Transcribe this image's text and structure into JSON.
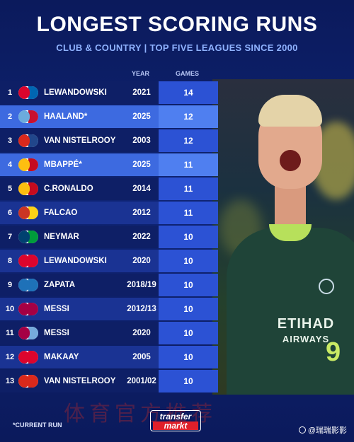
{
  "header": {
    "title": "LONGEST SCORING RUNS",
    "subtitle": "CLUB & COUNTRY | TOP FIVE LEAGUES SINCE 2000"
  },
  "columns": {
    "year": "YEAR",
    "games": "GAMES"
  },
  "colors": {
    "background": "#0d1a55",
    "row_dark": "#0e1f66",
    "row_light": "#1a3393",
    "row_highlight": "#3d6ae0",
    "games_column": "#2c52d4",
    "subtitle": "#8fb2ff"
  },
  "rows": [
    {
      "rank": "1",
      "name": "LEWANDOWSKI",
      "year": "2021",
      "games": "14",
      "crest": "bayern-crest-icon",
      "crest_colors": [
        "#dc052d",
        "#0066b2"
      ]
    },
    {
      "rank": "2",
      "name": "HAALAND*",
      "year": "2025",
      "games": "12",
      "crest": "man-city-crest-icon",
      "crest_colors": [
        "#6cabdd",
        "#c8102e"
      ]
    },
    {
      "rank": "3",
      "name": "VAN NISTELROOY",
      "year": "2003",
      "games": "12",
      "crest": "man-united-crest-icon",
      "crest_colors": [
        "#da291c",
        "#21468b"
      ]
    },
    {
      "rank": "4",
      "name": "MBAPPÉ*",
      "year": "2025",
      "games": "11",
      "crest": "real-madrid-crest-icon",
      "crest_colors": [
        "#febe10",
        "#c60b1e"
      ]
    },
    {
      "rank": "5",
      "name": "C.RONALDO",
      "year": "2014",
      "games": "11",
      "crest": "real-madrid-crest-icon",
      "crest_colors": [
        "#febe10",
        "#c60b1e"
      ]
    },
    {
      "rank": "6",
      "name": "FALCAO",
      "year": "2012",
      "games": "11",
      "crest": "atletico-crest-icon",
      "crest_colors": [
        "#cb3524",
        "#fcd116"
      ]
    },
    {
      "rank": "7",
      "name": "NEYMAR",
      "year": "2022",
      "games": "10",
      "crest": "psg-crest-icon",
      "crest_colors": [
        "#004170",
        "#009c3b"
      ]
    },
    {
      "rank": "8",
      "name": "LEWANDOWSKI",
      "year": "2020",
      "games": "10",
      "crest": "bayern-crest-icon",
      "crest_colors": [
        "#dc052d",
        "#dc052d"
      ]
    },
    {
      "rank": "9",
      "name": "ZAPATA",
      "year": "2018/19",
      "games": "10",
      "crest": "atalanta-crest-icon",
      "crest_colors": [
        "#1e71b8",
        "#1e71b8"
      ]
    },
    {
      "rank": "10",
      "name": "MESSI",
      "year": "2012/13",
      "games": "10",
      "crest": "barcelona-crest-icon",
      "crest_colors": [
        "#a50044",
        "#a50044"
      ]
    },
    {
      "rank": "11",
      "name": "MESSI",
      "year": "2020",
      "games": "10",
      "crest": "barcelona-crest-icon",
      "crest_colors": [
        "#a50044",
        "#75aadb"
      ]
    },
    {
      "rank": "12",
      "name": "MAKAAY",
      "year": "2005",
      "games": "10",
      "crest": "bayern-crest-icon",
      "crest_colors": [
        "#dc052d",
        "#dc052d"
      ]
    },
    {
      "rank": "13",
      "name": "VAN NISTELROOY",
      "year": "2001/02",
      "games": "10",
      "crest": "man-united-crest-icon",
      "crest_colors": [
        "#da291c",
        "#da291c"
      ]
    }
  ],
  "highlighted_ranks": [
    "2",
    "4"
  ],
  "photo": {
    "sponsor_line1": "ETIHAD",
    "sponsor_line2": "AIRWAYS",
    "shirt_number": "9"
  },
  "footer": {
    "footnote": "*CURRENT RUN",
    "logo_line1": "transfer",
    "logo_line2": "markt",
    "watermark": "体育官方推荐",
    "source": "@瑞瑞影影"
  }
}
